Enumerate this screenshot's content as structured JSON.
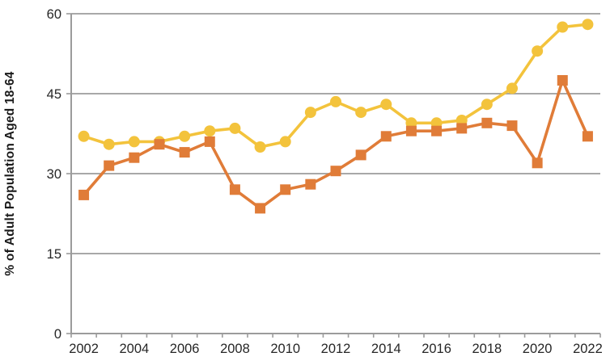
{
  "chart_data": {
    "type": "line",
    "title": "",
    "xlabel": "",
    "ylabel": "% of Adult Population Aged 18-64",
    "x": [
      2002,
      2003,
      2004,
      2005,
      2006,
      2007,
      2008,
      2009,
      2010,
      2011,
      2012,
      2013,
      2014,
      2015,
      2016,
      2017,
      2018,
      2019,
      2020,
      2021,
      2022
    ],
    "x_tick_labels": [
      "2002",
      "2004",
      "2006",
      "2008",
      "2010",
      "2012",
      "2014",
      "2016",
      "2018",
      "2020",
      "2022"
    ],
    "x_label_every": 2,
    "y_ticks": [
      0,
      15,
      30,
      45,
      60
    ],
    "ylim": [
      0,
      60
    ],
    "grid": true,
    "legend_position": "none",
    "series": [
      {
        "name": "series-yellow-circles",
        "marker": "circle",
        "color": "#F3C33C",
        "values": [
          37,
          35.5,
          36,
          36,
          37,
          38,
          38.5,
          35,
          36,
          41.5,
          43.5,
          41.5,
          43,
          39.5,
          39.5,
          40,
          43,
          46,
          53,
          57.5,
          58
        ]
      },
      {
        "name": "series-orange-squares",
        "marker": "square",
        "color": "#E07C38",
        "values": [
          26,
          31.5,
          33,
          35.5,
          34,
          36,
          27,
          23.5,
          27,
          28,
          30.5,
          33.5,
          37,
          38,
          38,
          38.5,
          39.5,
          39,
          32,
          47.5,
          37
        ]
      }
    ],
    "colors": {
      "gridline": "#9b9b9b",
      "axis": "#9b9b9b",
      "text": "#262626"
    }
  }
}
